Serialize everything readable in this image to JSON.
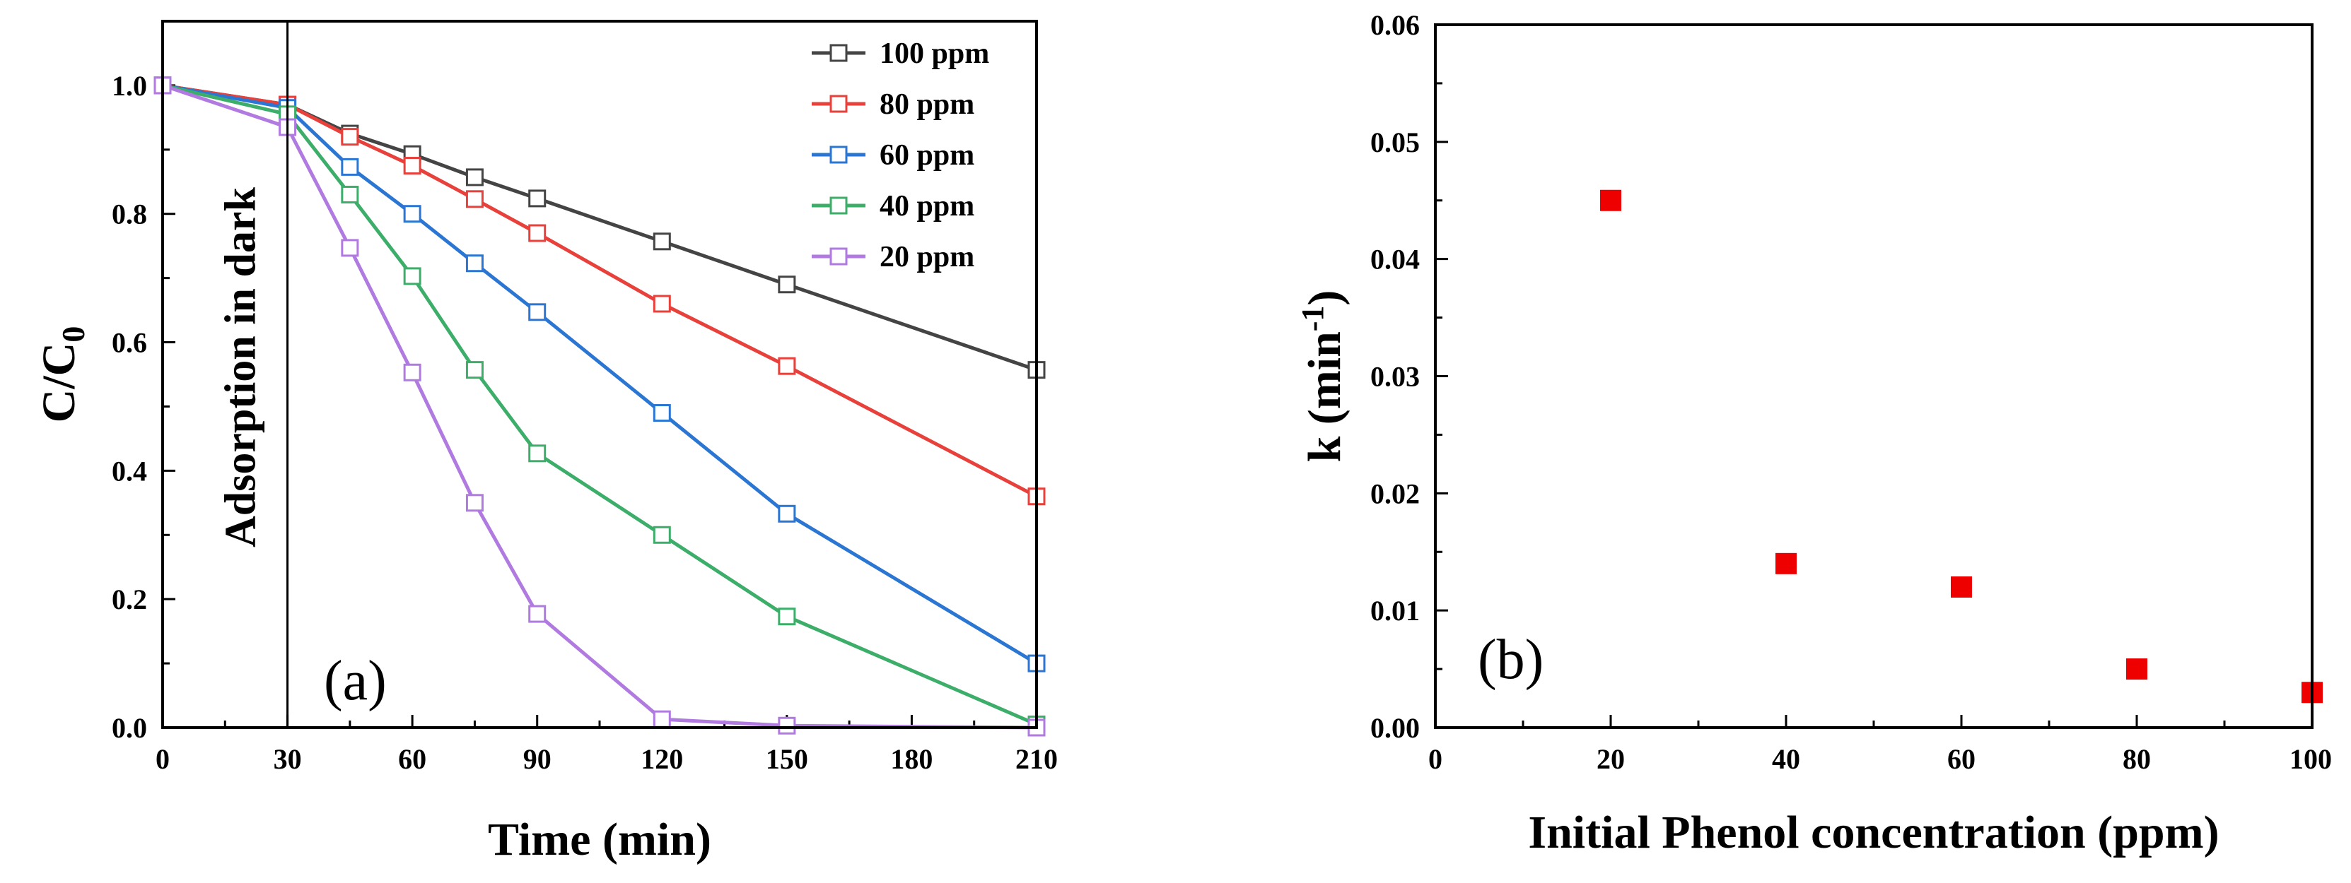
{
  "chart_data": [
    {
      "type": "line",
      "panel_label": "(a)",
      "xlabel": "Time (min)",
      "ylabel": "C/C",
      "ylabel_subscript": "0",
      "xlim": [
        0,
        210
      ],
      "ylim": [
        0,
        1.1
      ],
      "xticks": [
        0,
        30,
        60,
        90,
        120,
        150,
        180,
        210
      ],
      "yticks": [
        "0.0",
        "0.2",
        "0.4",
        "0.6",
        "0.8",
        "1.0"
      ],
      "annotation": "Adsorption in dark",
      "annotation_x": 30,
      "legend_position": "top-right",
      "series": [
        {
          "name": "100 ppm",
          "color": "#444444",
          "x": [
            0,
            30,
            45,
            60,
            75,
            90,
            120,
            150,
            210
          ],
          "y": [
            1.0,
            0.97,
            0.925,
            0.893,
            0.857,
            0.824,
            0.757,
            0.69,
            0.557
          ]
        },
        {
          "name": "80 ppm",
          "color": "#e8403a",
          "x": [
            0,
            30,
            45,
            60,
            75,
            90,
            120,
            150,
            210
          ],
          "y": [
            1.0,
            0.97,
            0.92,
            0.875,
            0.823,
            0.77,
            0.66,
            0.563,
            0.36
          ]
        },
        {
          "name": "60 ppm",
          "color": "#2a76d2",
          "x": [
            0,
            30,
            45,
            60,
            75,
            90,
            120,
            150,
            210
          ],
          "y": [
            1.0,
            0.965,
            0.873,
            0.8,
            0.723,
            0.647,
            0.49,
            0.333,
            0.1
          ]
        },
        {
          "name": "40 ppm",
          "color": "#3cae6a",
          "x": [
            0,
            30,
            45,
            60,
            75,
            90,
            120,
            150,
            210
          ],
          "y": [
            1.0,
            0.955,
            0.83,
            0.703,
            0.557,
            0.427,
            0.3,
            0.173,
            0.005
          ]
        },
        {
          "name": "20 ppm",
          "color": "#b07ae0",
          "x": [
            0,
            30,
            45,
            60,
            75,
            90,
            120,
            150,
            210
          ],
          "y": [
            1.0,
            0.935,
            0.747,
            0.553,
            0.35,
            0.177,
            0.013,
            0.003,
            0.0
          ]
        }
      ]
    },
    {
      "type": "scatter",
      "panel_label": "(b)",
      "xlabel": "Initial Phenol concentration (ppm)",
      "ylabel": "k (min",
      "ylabel_superscript": "-1",
      "ylabel_close": ")",
      "xlim": [
        0,
        100
      ],
      "ylim": [
        0,
        0.06
      ],
      "xticks": [
        "0",
        "20",
        "40",
        "60",
        "80",
        "100"
      ],
      "yticks": [
        "0.00",
        "0.01",
        "0.02",
        "0.03",
        "0.04",
        "0.05",
        "0.06"
      ],
      "marker_color": "#ee0000",
      "x": [
        20,
        40,
        60,
        80,
        100
      ],
      "y": [
        0.045,
        0.014,
        0.012,
        0.005,
        0.003
      ]
    }
  ]
}
